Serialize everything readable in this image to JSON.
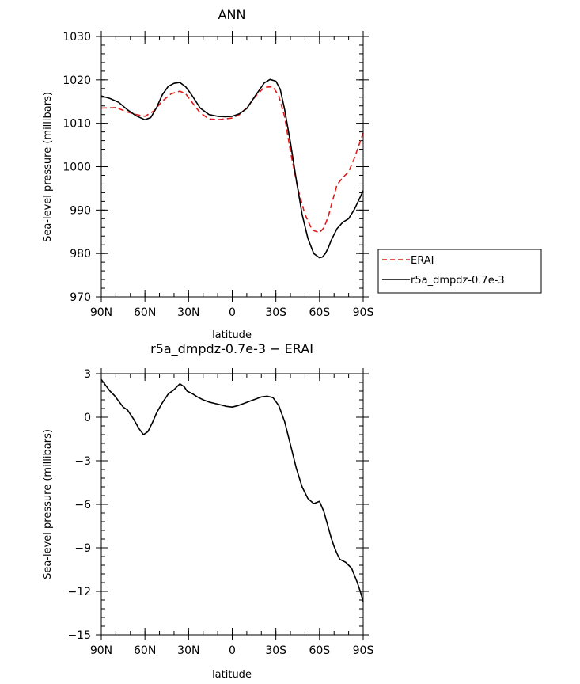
{
  "chart_data": [
    {
      "type": "line",
      "title": "ANN",
      "xlabel": "latitude",
      "ylabel": "Sea-level pressure (millibars)",
      "x_tick_labels": [
        "90N",
        "60N",
        "30N",
        "0",
        "30S",
        "60S",
        "90S"
      ],
      "x_ticks": [
        90,
        60,
        30,
        0,
        -30,
        -60,
        -90
      ],
      "xlim": [
        90,
        -90
      ],
      "y_ticks": [
        970,
        980,
        990,
        1000,
        1010,
        1020,
        1030
      ],
      "y_tick_labels": [
        "970",
        "980",
        "990",
        "1000",
        "1010",
        "1020",
        "1030"
      ],
      "ylim": [
        970,
        1030
      ],
      "legend_position": "right-middle outside",
      "series": [
        {
          "name": "ERAI",
          "style": "dashed",
          "color": "#e31a1c",
          "x": [
            90,
            80,
            72,
            66,
            60,
            54,
            48,
            42,
            36,
            32,
            28,
            22,
            16,
            10,
            5,
            0,
            -5,
            -10,
            -16,
            -22,
            -28,
            -32,
            -36,
            -40,
            -45,
            -50,
            -55,
            -60,
            -63,
            -66,
            -68,
            -72,
            -76,
            -80,
            -84,
            -88,
            -90
          ],
          "y": [
            1013.5,
            1013.6,
            1012.6,
            1012.0,
            1011.6,
            1012.8,
            1015.1,
            1016.8,
            1017.4,
            1016.8,
            1015.0,
            1012.4,
            1011.0,
            1010.8,
            1011.0,
            1011.2,
            1012.0,
            1013.6,
            1016.2,
            1018.3,
            1018.4,
            1016.3,
            1011.5,
            1003.5,
            995.0,
            989.0,
            985.4,
            984.8,
            985.9,
            988.5,
            991.0,
            995.8,
            997.5,
            998.8,
            1002.0,
            1005.8,
            1007.8
          ]
        },
        {
          "name": "r5a_dmpdz-0.7e-3",
          "style": "solid",
          "color": "#000000",
          "x": [
            90,
            84,
            78,
            72,
            66,
            60,
            56,
            52,
            48,
            44,
            40,
            36,
            32,
            28,
            22,
            16,
            10,
            5,
            0,
            -5,
            -10,
            -16,
            -22,
            -26,
            -30,
            -33,
            -36,
            -40,
            -44,
            -48,
            -52,
            -56,
            -60,
            -62,
            -64,
            -66,
            -68,
            -72,
            -76,
            -80,
            -84,
            -88,
            -90
          ],
          "y": [
            1016.3,
            1015.7,
            1014.8,
            1013.1,
            1011.7,
            1010.8,
            1011.3,
            1013.6,
            1016.6,
            1018.5,
            1019.2,
            1019.4,
            1018.4,
            1016.6,
            1013.5,
            1012.0,
            1011.6,
            1011.5,
            1011.6,
            1012.2,
            1013.4,
            1016.4,
            1019.3,
            1020.1,
            1019.7,
            1017.8,
            1013.2,
            1005.5,
            997.0,
            989.0,
            983.5,
            980.0,
            979.0,
            979.2,
            980.0,
            981.3,
            983.0,
            985.7,
            987.2,
            988.0,
            990.2,
            993.0,
            994.5
          ]
        }
      ]
    },
    {
      "type": "line",
      "title": "r5a_dmpdz-0.7e-3 − ERAI",
      "xlabel": "latitude",
      "ylabel": "Sea-level pressure (millibars)",
      "x_tick_labels": [
        "90N",
        "60N",
        "30N",
        "0",
        "30S",
        "60S",
        "90S"
      ],
      "x_ticks": [
        90,
        60,
        30,
        0,
        -30,
        -60,
        -90
      ],
      "xlim": [
        90,
        -90
      ],
      "y_ticks": [
        -15,
        -12,
        -9,
        -6,
        -3,
        0,
        3
      ],
      "y_tick_labels": [
        "−15",
        "−12",
        "−9",
        "−6",
        "−3",
        "0",
        "3"
      ],
      "ylim": [
        -15,
        3
      ],
      "series": [
        {
          "name": "r5a_dmpdz-0.7e-3 − ERAI",
          "style": "solid",
          "color": "#000000",
          "x": [
            90,
            87,
            84,
            81,
            78,
            75,
            72,
            68,
            64,
            61,
            58,
            55,
            52,
            48,
            44,
            40,
            36,
            33,
            31,
            29,
            27,
            24,
            20,
            16,
            12,
            8,
            4,
            0,
            -4,
            -8,
            -12,
            -16,
            -20,
            -24,
            -28,
            -32,
            -36,
            -40,
            -44,
            -48,
            -52,
            -56,
            -60,
            -63,
            -66,
            -68,
            -70,
            -72,
            -74,
            -76,
            -78,
            -80,
            -82,
            -84,
            -86,
            -88,
            -90
          ],
          "y": [
            2.6,
            2.2,
            1.8,
            1.5,
            1.1,
            0.7,
            0.5,
            -0.1,
            -0.8,
            -1.2,
            -1.0,
            -0.4,
            0.3,
            1.0,
            1.6,
            1.9,
            2.3,
            2.1,
            1.8,
            1.7,
            1.6,
            1.4,
            1.2,
            1.05,
            0.95,
            0.85,
            0.75,
            0.7,
            0.8,
            0.95,
            1.1,
            1.25,
            1.4,
            1.45,
            1.35,
            0.8,
            -0.3,
            -1.9,
            -3.5,
            -4.8,
            -5.6,
            -5.95,
            -5.8,
            -6.5,
            -7.6,
            -8.3,
            -8.9,
            -9.4,
            -9.8,
            -9.9,
            -10.0,
            -10.2,
            -10.4,
            -10.9,
            -11.4,
            -12.0,
            -12.7
          ]
        }
      ]
    }
  ]
}
